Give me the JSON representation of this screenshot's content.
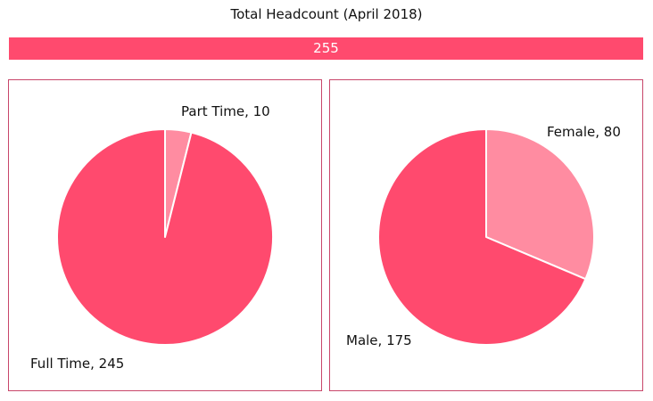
{
  "colors": {
    "primary": "#ff4a6e",
    "secondary": "#ff8ca1",
    "panel_border": "#c8466a",
    "separator": "#ffffff"
  },
  "header": {
    "title": "Total Headcount (April 2018)",
    "total": "255"
  },
  "chart_data": [
    {
      "type": "pie",
      "slices": [
        {
          "name": "Part Time",
          "value": 10,
          "label": "Part Time, 10",
          "color": "#ff8ca1"
        },
        {
          "name": "Full Time",
          "value": 245,
          "label": "Full Time, 245",
          "color": "#ff4a6e"
        }
      ]
    },
    {
      "type": "pie",
      "slices": [
        {
          "name": "Female",
          "value": 80,
          "label": "Female, 80",
          "color": "#ff8ca1"
        },
        {
          "name": "Male",
          "value": 175,
          "label": "Male, 175",
          "color": "#ff4a6e"
        }
      ]
    }
  ]
}
